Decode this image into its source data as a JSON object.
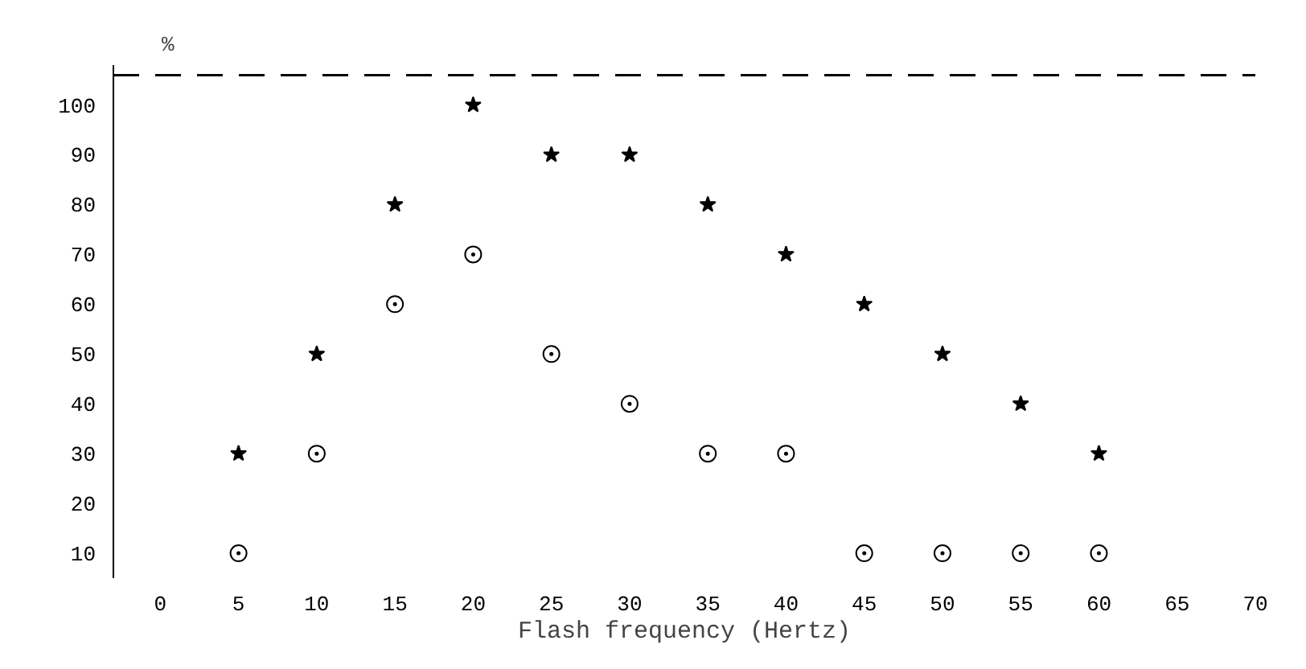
{
  "chart_data": {
    "type": "scatter",
    "xlabel": "Flash frequency (Hertz)",
    "ylabel": "%",
    "x": [
      5,
      10,
      15,
      20,
      25,
      30,
      35,
      40,
      45,
      50,
      55,
      60
    ],
    "series": [
      {
        "color": "#000000",
        "marker": "star",
        "values": [
          30,
          50,
          80,
          100,
          90,
          90,
          80,
          70,
          60,
          50,
          40,
          30
        ]
      },
      {
        "color": "#000000",
        "marker": "circle",
        "values": [
          10,
          30,
          60,
          70,
          50,
          40,
          30,
          30,
          10,
          10,
          10,
          10
        ]
      }
    ],
    "xlim": [
      -3,
      70
    ],
    "ylim": [
      5,
      108
    ],
    "xticks": [
      0,
      5,
      10,
      15,
      20,
      25,
      30,
      35,
      40,
      45,
      50,
      55,
      60,
      65,
      70
    ],
    "yticks": [
      10,
      20,
      30,
      40,
      50,
      60,
      70,
      80,
      90,
      100
    ],
    "ref_lines": [
      {
        "axis": "y",
        "value": 106,
        "line_style": "dashed",
        "color": "#000000"
      }
    ],
    "grid": false
  }
}
